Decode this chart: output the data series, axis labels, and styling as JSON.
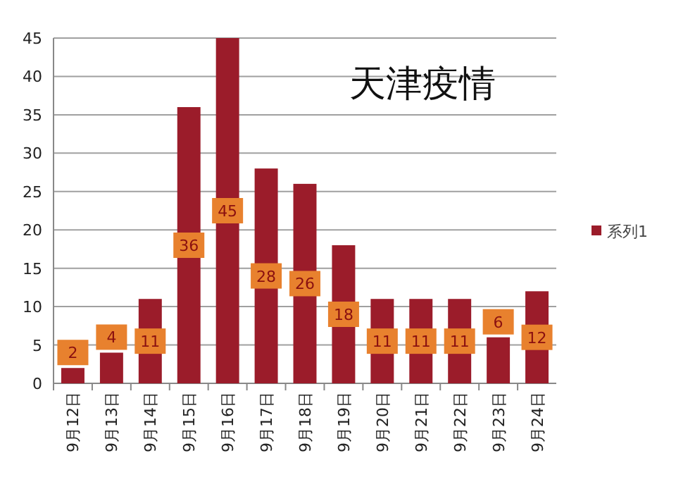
{
  "chart_data": {
    "type": "bar",
    "title": "天津疫情",
    "categories": [
      "9月12日",
      "9月13日",
      "9月14日",
      "9月15日",
      "9月16日",
      "9月17日",
      "9月18日",
      "9月19日",
      "9月20日",
      "9月21日",
      "9月22日",
      "9月23日",
      "9月24日"
    ],
    "series": [
      {
        "name": "系列1",
        "color": "#9b1c2a",
        "values": [
          2,
          4,
          11,
          36,
          45,
          28,
          26,
          18,
          11,
          11,
          11,
          6,
          12
        ]
      }
    ],
    "ylim": [
      0,
      45
    ],
    "yticks": [
      0,
      5,
      10,
      15,
      20,
      25,
      30,
      35,
      40,
      45
    ],
    "grid": "y",
    "legend": "right",
    "data_labels": true
  }
}
